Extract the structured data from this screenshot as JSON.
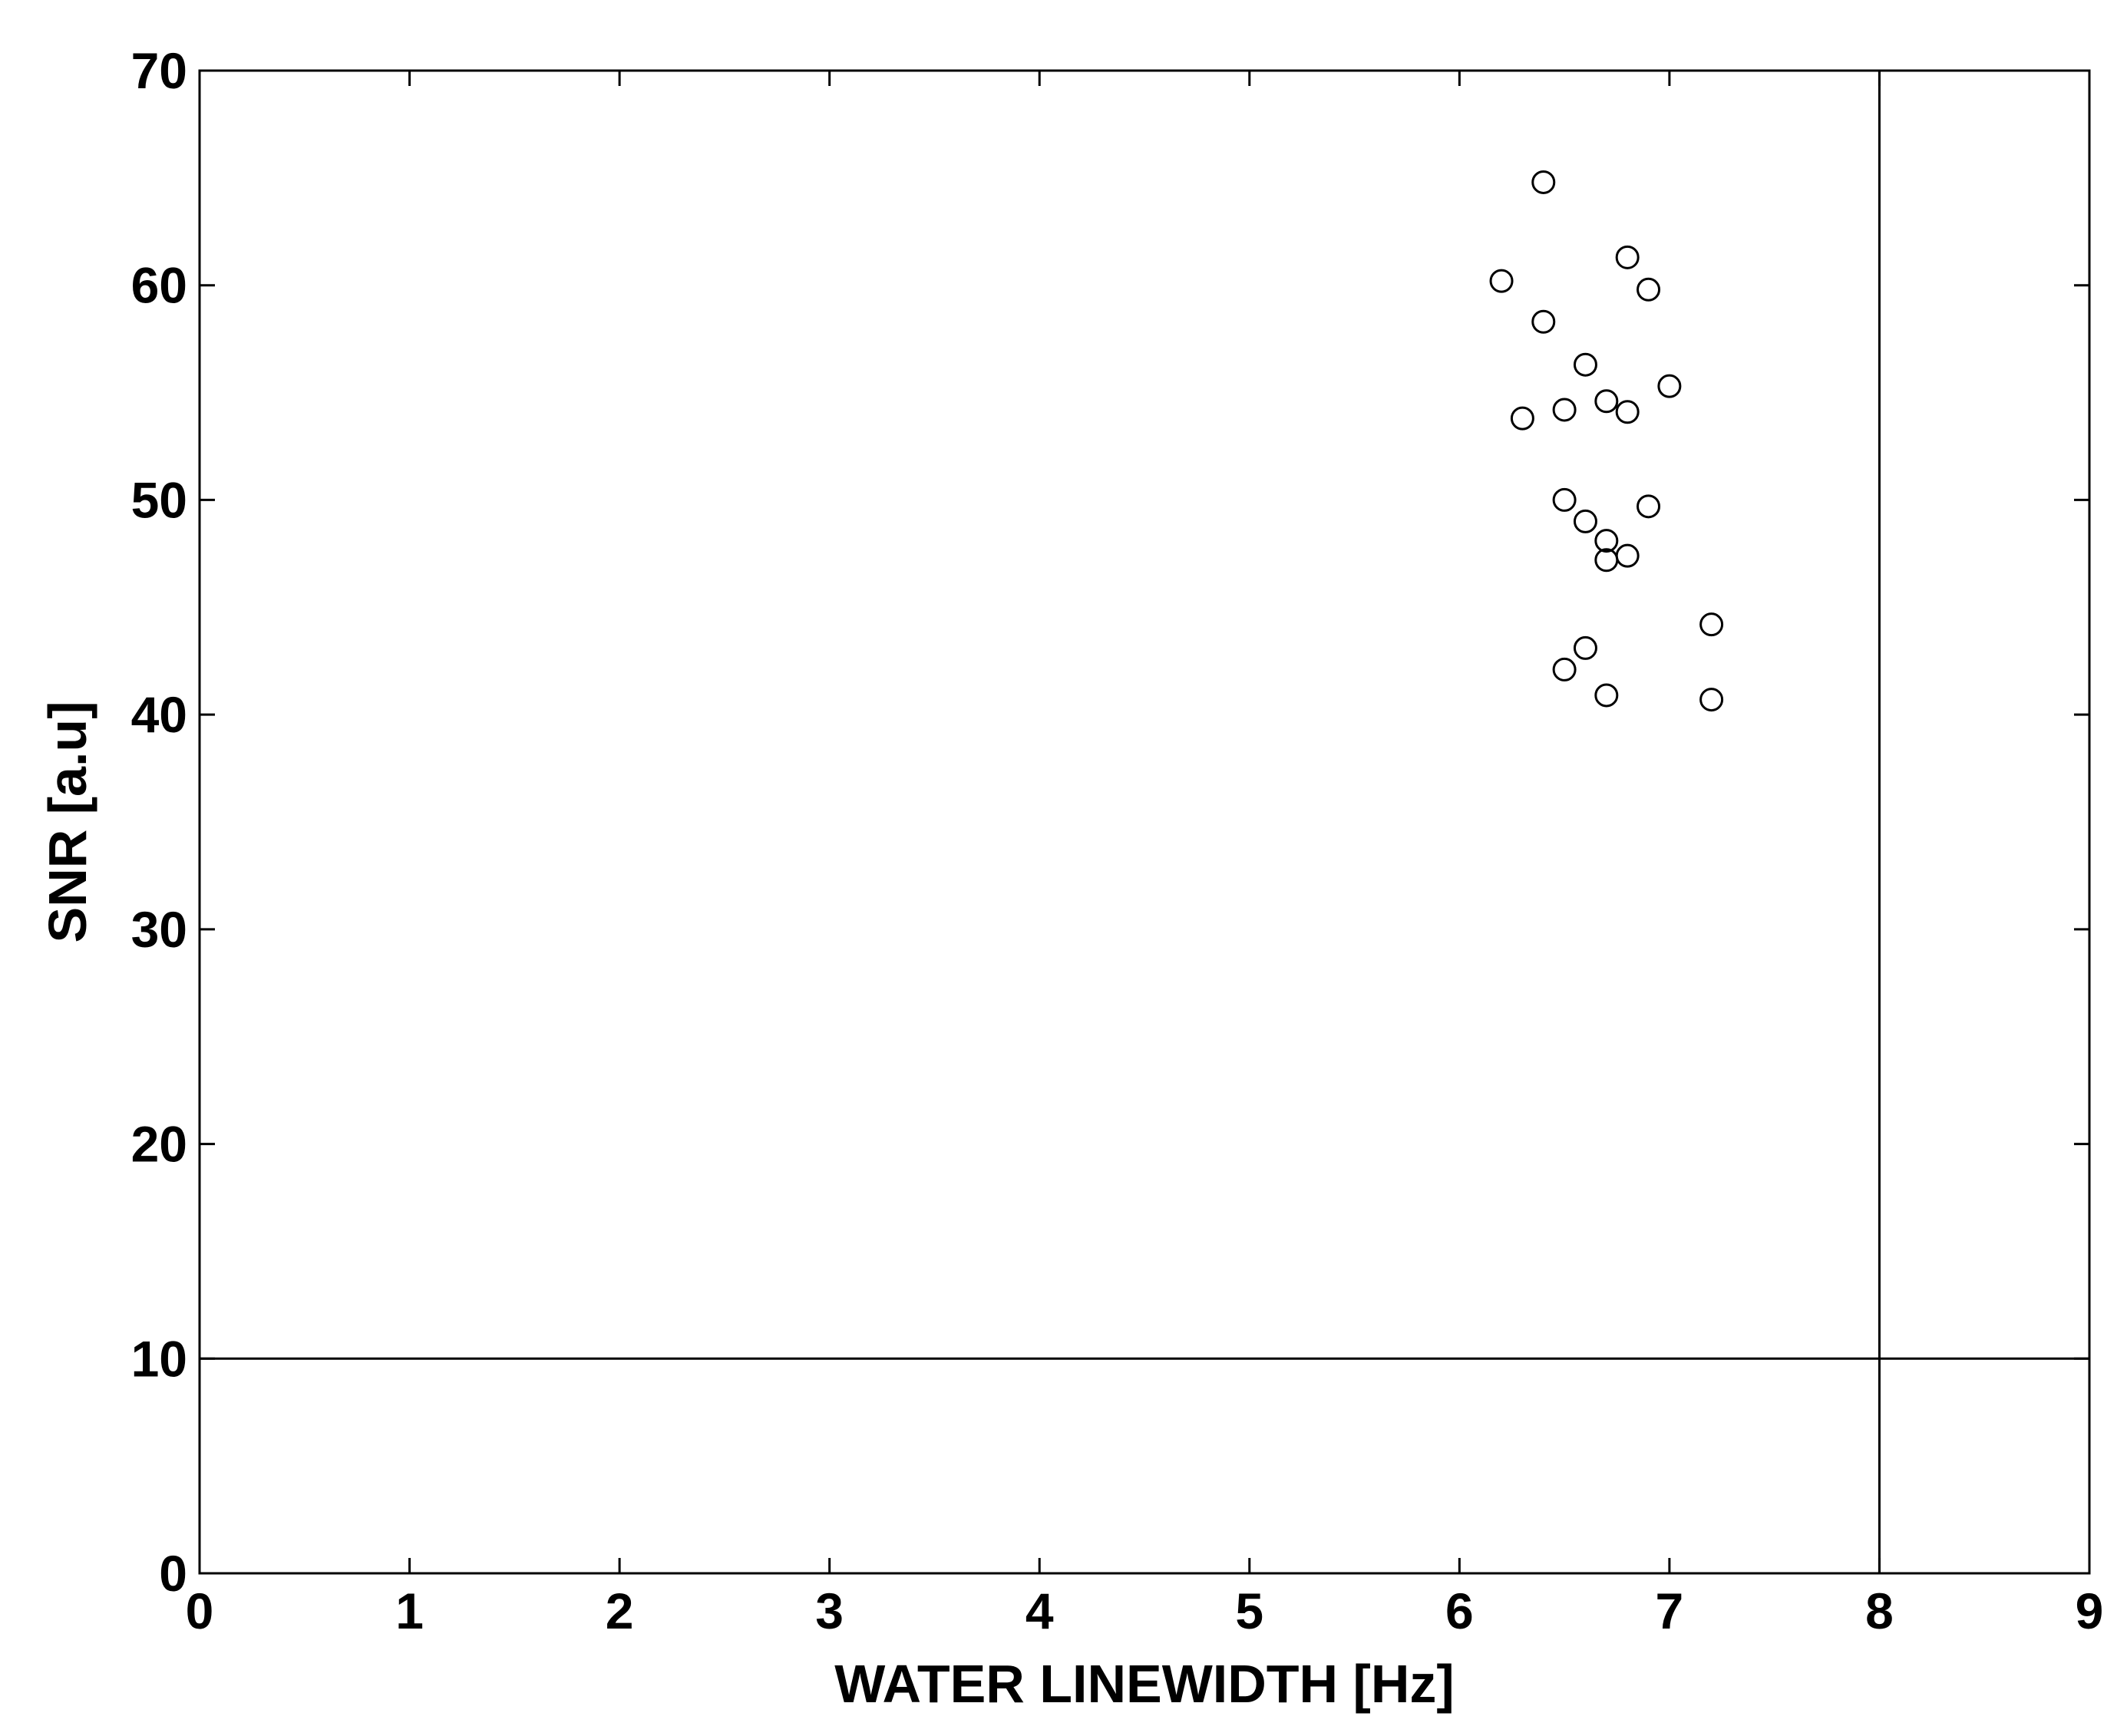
{
  "chart_data": {
    "type": "scatter",
    "title": "",
    "xlabel": "WATER LINEWIDTH [Hz]",
    "ylabel": "SNR [a.u]",
    "xlim": [
      0,
      9
    ],
    "ylim": [
      0,
      70
    ],
    "xticks": [
      "0",
      "1",
      "2",
      "3",
      "4",
      "5",
      "6",
      "7",
      "8",
      "9"
    ],
    "yticks": [
      "0",
      "10",
      "20",
      "30",
      "40",
      "50",
      "60",
      "70"
    ],
    "grid": false,
    "marker": "open-circle",
    "color": "#000000",
    "points": [
      {
        "x": 6.4,
        "y": 64.8
      },
      {
        "x": 6.8,
        "y": 61.3
      },
      {
        "x": 6.2,
        "y": 60.2
      },
      {
        "x": 6.9,
        "y": 59.8
      },
      {
        "x": 6.4,
        "y": 58.3
      },
      {
        "x": 6.6,
        "y": 56.3
      },
      {
        "x": 7.0,
        "y": 55.3
      },
      {
        "x": 6.7,
        "y": 54.6
      },
      {
        "x": 6.5,
        "y": 54.2
      },
      {
        "x": 6.8,
        "y": 54.1
      },
      {
        "x": 6.3,
        "y": 53.8
      },
      {
        "x": 6.5,
        "y": 50.0
      },
      {
        "x": 6.9,
        "y": 49.7
      },
      {
        "x": 6.6,
        "y": 49.0
      },
      {
        "x": 6.7,
        "y": 48.1
      },
      {
        "x": 6.8,
        "y": 47.4
      },
      {
        "x": 6.7,
        "y": 47.2
      },
      {
        "x": 7.2,
        "y": 44.2
      },
      {
        "x": 6.6,
        "y": 43.1
      },
      {
        "x": 6.5,
        "y": 42.1
      },
      {
        "x": 6.7,
        "y": 40.9
      },
      {
        "x": 7.2,
        "y": 40.7
      }
    ],
    "reference_lines": [
      {
        "orientation": "horizontal",
        "value": 10
      },
      {
        "orientation": "vertical",
        "value": 8
      }
    ]
  }
}
